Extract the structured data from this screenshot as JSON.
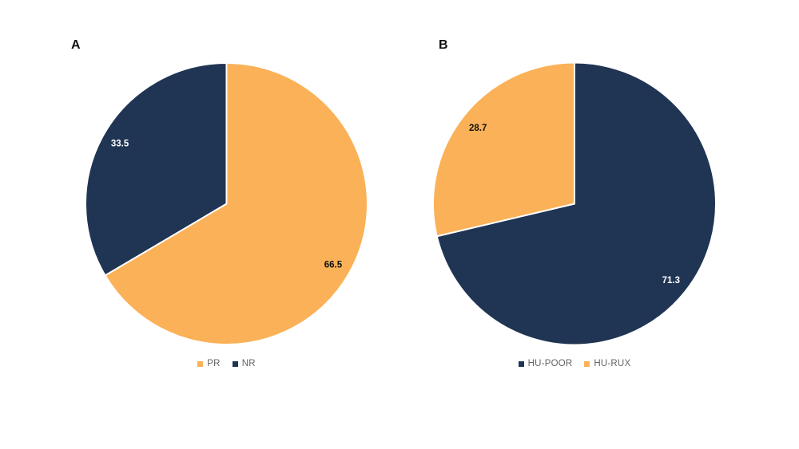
{
  "styles": {
    "background": "#ffffff",
    "slice_border_color": "#ffffff",
    "legend_text_color": "#636363",
    "panel_label_color": "#111111",
    "navy": "#203453",
    "orange": "#FBB157"
  },
  "chart_data": [
    {
      "type": "pie",
      "panel_label": "A",
      "start_angle_deg": 0,
      "direction": "clockwise",
      "legend_position": "bottom",
      "series": [
        {
          "name": "PR",
          "value": 66.5,
          "label": "66.5",
          "color": "#FBB157",
          "label_color": "#111111"
        },
        {
          "name": "NR",
          "value": 33.5,
          "label": "33.5",
          "color": "#203453",
          "label_color": "#ffffff"
        }
      ]
    },
    {
      "type": "pie",
      "panel_label": "B",
      "start_angle_deg": 0,
      "direction": "clockwise",
      "legend_position": "bottom",
      "series": [
        {
          "name": "HU-POOR",
          "value": 71.3,
          "label": "71.3",
          "color": "#203453",
          "label_color": "#ffffff"
        },
        {
          "name": "HU-RUX",
          "value": 28.7,
          "label": "28.7",
          "color": "#FBB157",
          "label_color": "#111111"
        }
      ]
    }
  ]
}
